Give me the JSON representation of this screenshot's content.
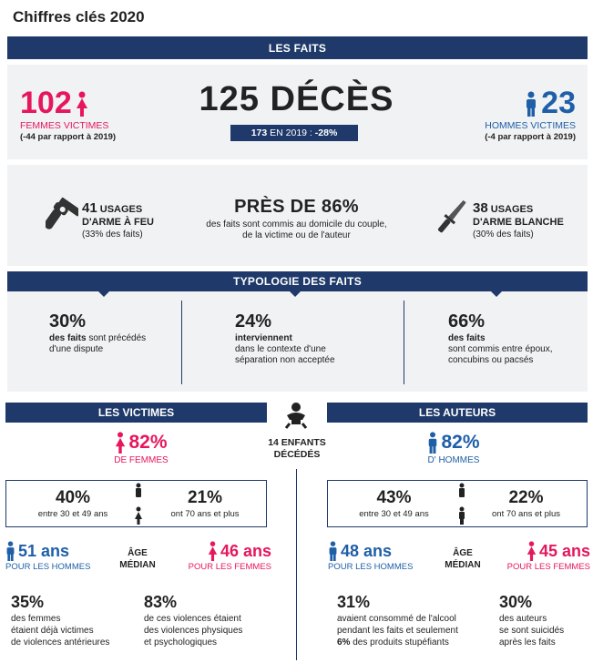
{
  "title": "Chiffres clés 2020",
  "faits": {
    "header": "LES FAITS",
    "femmes_count": "102",
    "femmes_label": "FEMMES VICTIMES",
    "femmes_diff": "(-44 par rapport à 2019)",
    "deces_title": "125 DÉCÈS",
    "deces_badge_count": "173",
    "deces_badge_mid": " EN 2019 : ",
    "deces_badge_pct": "-28%",
    "hommes_count": "23",
    "hommes_label": "HOMMES VICTIMES",
    "hommes_diff": "(-4 par rapport à 2019)",
    "arme_feu_count": "41",
    "arme_feu_label_1": " USAGES",
    "arme_feu_label_2": "D'ARME À FEU",
    "arme_feu_pct": "(33% des faits)",
    "domicile_title": "PRÈS DE 86%",
    "domicile_text_1": "des faits sont commis au domicile du couple,",
    "domicile_text_2": "de la victime ou de l'auteur",
    "arme_blanche_count": "38",
    "arme_blanche_label_1": " USAGES",
    "arme_blanche_label_2": "D'ARME BLANCHE",
    "arme_blanche_pct": "(30% des faits)"
  },
  "typologie": {
    "header": "TYPOLOGIE DES FAITS",
    "items": [
      {
        "pct": "30%",
        "bold": "des faits",
        "text_1": " sont précédés",
        "text_2": "d'une dispute",
        "text_3": ""
      },
      {
        "pct": "24%",
        "bold": "interviennent",
        "text_1": "",
        "text_2": "dans le contexte d'une",
        "text_3": "séparation non acceptée"
      },
      {
        "pct": "66%",
        "bold": "des faits",
        "text_1": "",
        "text_2": "sont commis entre époux,",
        "text_3": "concubins ou pacsés"
      }
    ]
  },
  "enfants": {
    "line_1": "14 ENFANTS",
    "line_2": "DÉCÉDÉS"
  },
  "victimes": {
    "header": "LES VICTIMES",
    "pct": "82%",
    "pct_label": "DE FEMMES",
    "age_a_pct": "40%",
    "age_a_label": "entre 30 et 49 ans",
    "age_b_pct": "21%",
    "age_b_label": "ont 70 ans et plus",
    "median_h": "51 ans",
    "median_h_label": "POUR LES HOMMES",
    "median_title_1": "ÂGE",
    "median_title_2": "MÉDIAN",
    "median_f": "46 ans",
    "median_f_label": "POUR LES FEMMES",
    "stat_a_pct": "35%",
    "stat_a_1": "des femmes",
    "stat_a_2": "étaient déjà victimes",
    "stat_a_3": "de violences antérieures",
    "stat_b_pct": "83%",
    "stat_b_1": "de ces violences étaient",
    "stat_b_2": "des violences physiques",
    "stat_b_3": "et psychologiques"
  },
  "auteurs": {
    "header": "LES AUTEURS",
    "pct": "82%",
    "pct_label": "D' HOMMES",
    "age_a_pct": "43%",
    "age_a_label": "entre 30 et 49 ans",
    "age_b_pct": "22%",
    "age_b_label": "ont 70 ans et plus",
    "median_h": "48 ans",
    "median_h_label": "POUR LES HOMMES",
    "median_title_1": "ÂGE",
    "median_title_2": "MÉDIAN",
    "median_f": "45 ans",
    "median_f_label": "POUR LES FEMMES",
    "stat_a_pct": "31%",
    "stat_a_1": "avaient consommé de l'alcool",
    "stat_a_2": "pendant les faits et seulement",
    "stat_a_3_bold": "6%",
    "stat_a_3": " des produits stupéfiants",
    "stat_b_pct": "30%",
    "stat_b_1": "des auteurs",
    "stat_b_2": "se sont suicidés",
    "stat_b_3": "après les faits"
  },
  "colors": {
    "navy": "#1f3a6a",
    "pink": "#e6175c",
    "blue": "#1f5fa8",
    "panel": "#f1f2f4"
  }
}
